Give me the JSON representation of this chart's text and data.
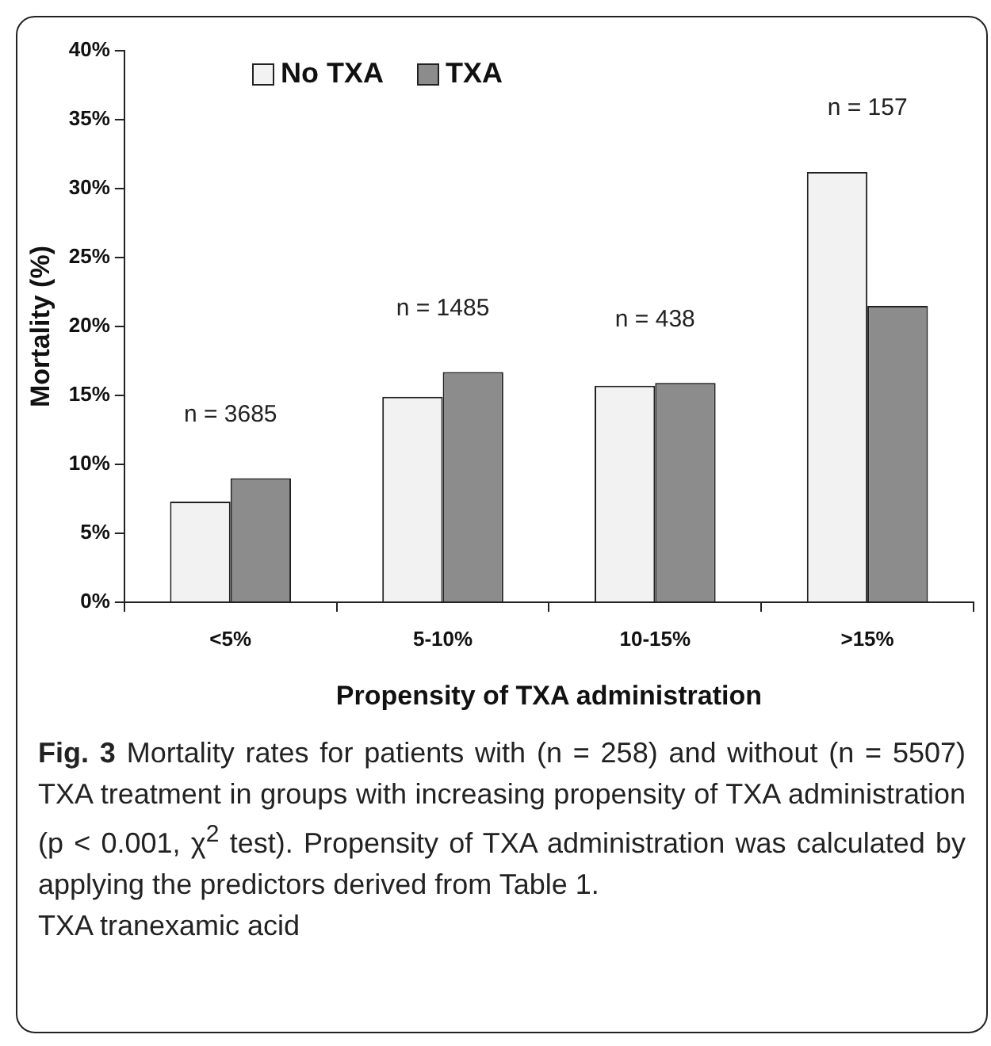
{
  "chart_data": {
    "type": "bar",
    "xlabel": "Propensity of TXA administration",
    "ylabel": "Mortality (%)",
    "categories": [
      "<5%",
      "5-10%",
      "10-15%",
      ">15%"
    ],
    "series": [
      {
        "name": "No TXA",
        "color": "#f2f2f2",
        "values": [
          7.3,
          14.9,
          15.7,
          31.2
        ]
      },
      {
        "name": "TXA",
        "color": "#8c8c8c",
        "values": [
          9.0,
          16.7,
          15.9,
          21.5
        ]
      }
    ],
    "ylim": [
      0,
      40
    ],
    "yticks": [
      {
        "value": 0,
        "label": "0%"
      },
      {
        "value": 5,
        "label": "5%"
      },
      {
        "value": 10,
        "label": "10%"
      },
      {
        "value": 15,
        "label": "15%"
      },
      {
        "value": 20,
        "label": "20%"
      },
      {
        "value": 25,
        "label": "25%"
      },
      {
        "value": 30,
        "label": "30%"
      },
      {
        "value": 35,
        "label": "35%"
      },
      {
        "value": 40,
        "label": "40%"
      }
    ],
    "grid": false,
    "legend": "top left",
    "annotations": [
      "n = 3685",
      "n = 1485",
      "n = 438",
      "n = 157",
      "Fig. 3",
      "Mortality rates for patients with (n = 258) and without (n = 5507) TXA treatment in groups with increasing propensity of TXA administration (p < 0.001, χ$^{2}$ test). Propensity of TXA administration was calculated by applying the predictors derived from Table 1.",
      "TXA tranexamic acid"
    ]
  }
}
